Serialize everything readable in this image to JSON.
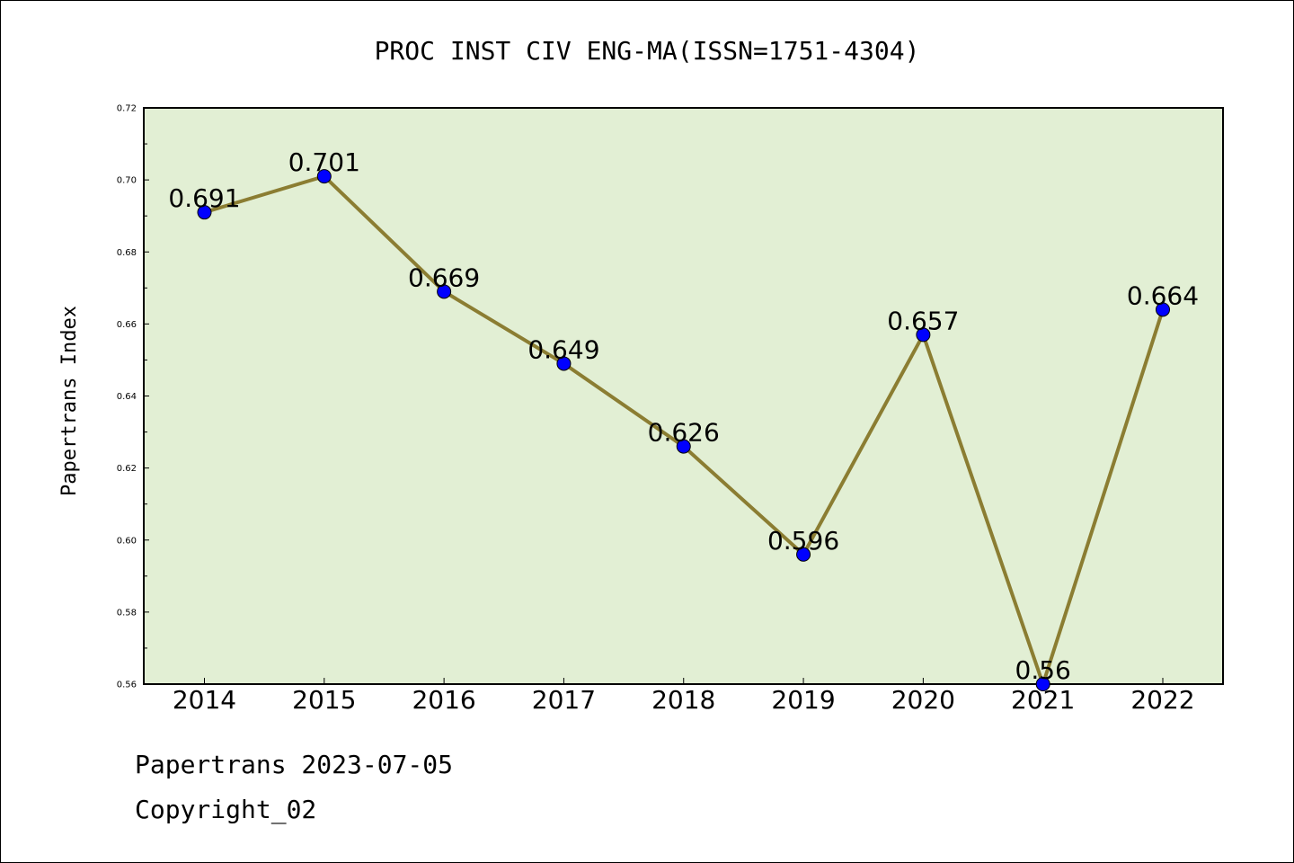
{
  "footer": {
    "line1": "Papertrans 2023-07-05",
    "line2": "Copyright_02"
  },
  "colors": {
    "plot_background": "#e2efd4",
    "line": "#8b7d32",
    "marker": "#0000ff"
  },
  "chart_data": {
    "type": "line",
    "title": "PROC INST CIV ENG-MA(ISSN=1751-4304)",
    "xlabel": "",
    "ylabel": "Papertrans Index",
    "categories": [
      "2014",
      "2015",
      "2016",
      "2017",
      "2018",
      "2019",
      "2020",
      "2021",
      "2022"
    ],
    "values": [
      0.691,
      0.701,
      0.669,
      0.649,
      0.626,
      0.596,
      0.657,
      0.56,
      0.664
    ],
    "data_labels": [
      "0.691",
      "0.701",
      "0.669",
      "0.649",
      "0.626",
      "0.596",
      "0.657",
      "0.56",
      "0.664"
    ],
    "ylim": [
      0.56,
      0.72
    ],
    "yticks": [
      "0.56",
      "0.58",
      "0.60",
      "0.62",
      "0.64",
      "0.66",
      "0.68",
      "0.70",
      "0.72"
    ],
    "grid": false,
    "legend": "none"
  }
}
